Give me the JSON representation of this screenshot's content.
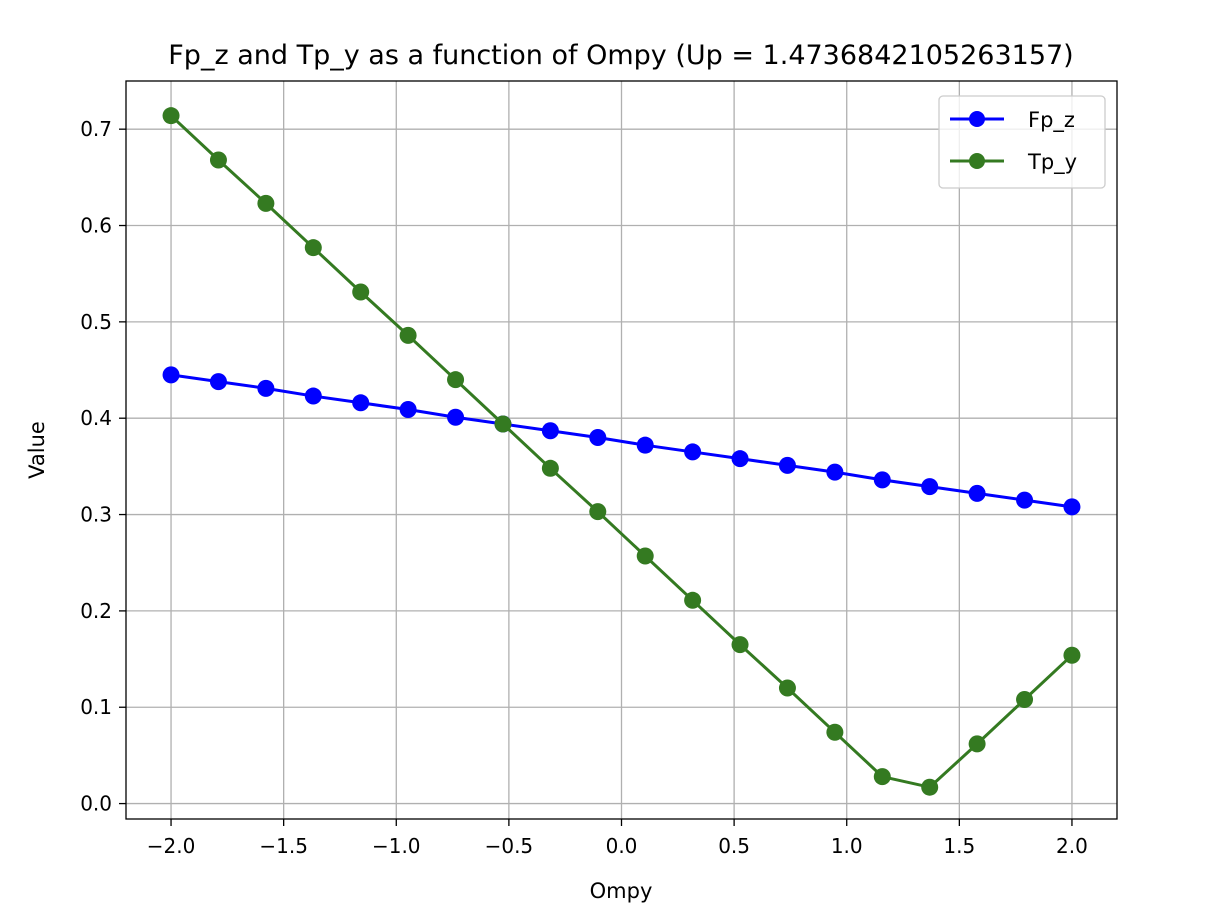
{
  "chart_data": {
    "type": "line",
    "title": "Fp_z and Tp_y as a function of Ompy (Up = 1.4736842105263157)",
    "xlabel": "Ompy",
    "ylabel": "Value",
    "xlim": [
      -2.2,
      2.2
    ],
    "ylim": [
      -0.016,
      0.75
    ],
    "xticks": [
      -2.0,
      -1.5,
      -1.0,
      -0.5,
      0.0,
      0.5,
      1.0,
      1.5,
      2.0
    ],
    "xtick_labels": [
      "−2.0",
      "−1.5",
      "−1.0",
      "−0.5",
      "0.0",
      "0.5",
      "1.0",
      "1.5",
      "2.0"
    ],
    "yticks": [
      0.0,
      0.1,
      0.2,
      0.3,
      0.4,
      0.5,
      0.6,
      0.7
    ],
    "ytick_labels": [
      "0.0",
      "0.1",
      "0.2",
      "0.3",
      "0.4",
      "0.5",
      "0.6",
      "0.7"
    ],
    "grid": true,
    "legend_position": "top-right",
    "x": [
      -2.0,
      -1.7895,
      -1.5789,
      -1.3684,
      -1.1579,
      -0.9474,
      -0.7368,
      -0.5263,
      -0.3158,
      -0.1053,
      0.1053,
      0.3158,
      0.5263,
      0.7368,
      0.9474,
      1.1579,
      1.3684,
      1.5789,
      1.7895,
      2.0
    ],
    "series": [
      {
        "name": "Fp_z",
        "color": "#0000ff",
        "marker": "circle",
        "values": [
          0.445,
          0.438,
          0.431,
          0.423,
          0.416,
          0.409,
          0.401,
          0.394,
          0.387,
          0.38,
          0.372,
          0.365,
          0.358,
          0.351,
          0.344,
          0.336,
          0.329,
          0.322,
          0.315,
          0.308
        ]
      },
      {
        "name": "Tp_y",
        "color": "#347a21",
        "marker": "circle",
        "values": [
          0.714,
          0.668,
          0.623,
          0.577,
          0.531,
          0.486,
          0.44,
          0.394,
          0.348,
          0.303,
          0.257,
          0.211,
          0.165,
          0.12,
          0.074,
          0.028,
          0.017,
          0.062,
          0.108,
          0.154
        ]
      }
    ]
  }
}
